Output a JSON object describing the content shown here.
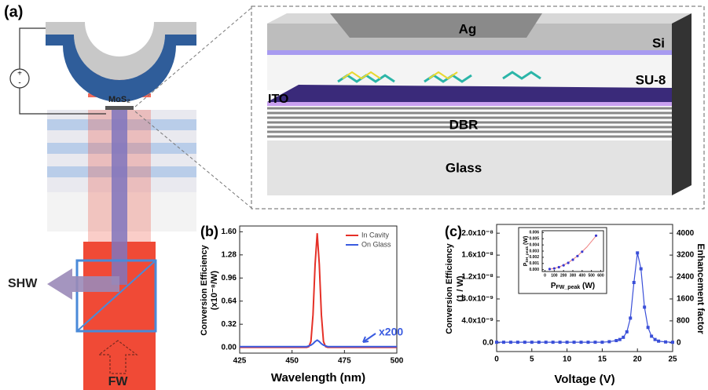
{
  "panel_a": {
    "label": "(a)",
    "mos2": "MoS₂",
    "plus": "+",
    "minus": "-",
    "shw": "SHW",
    "fw": "FW"
  },
  "device": {
    "ag": "Ag",
    "si": "Si",
    "su8": "SU-8",
    "ito": "ITO",
    "dbr": "DBR",
    "glass": "Glass"
  },
  "chart_data": [
    {
      "type": "line",
      "panel": "(b)",
      "xlabel": "Wavelength (nm)",
      "ylabel": [
        "Conversion Efficiency",
        "(x10⁻⁸/W)"
      ],
      "annotation": "x200",
      "x": [
        425,
        440,
        455,
        457,
        458,
        459,
        460,
        461,
        462,
        463,
        464,
        465,
        466,
        467,
        470,
        485,
        500
      ],
      "series": [
        {
          "name": "In Cavity",
          "color": "#e53027",
          "values": [
            0,
            0,
            0,
            0,
            0.01,
            0.08,
            0.45,
            1.15,
            1.58,
            1.15,
            0.45,
            0.08,
            0.01,
            0,
            0,
            0,
            0
          ]
        },
        {
          "name": "On Glass",
          "color": "#3a5be0",
          "values": [
            0.01,
            0.01,
            0.01,
            0.01,
            0.02,
            0.03,
            0.05,
            0.08,
            0.1,
            0.08,
            0.05,
            0.03,
            0.02,
            0.01,
            0.01,
            0.01,
            0.01
          ]
        }
      ],
      "xlim": [
        425,
        500
      ],
      "xticks": [
        425,
        450,
        475,
        500
      ],
      "ylim": [
        -0.08,
        1.68
      ],
      "yticks": [
        {
          "value": 0,
          "label": "0.00"
        },
        0.32,
        0.64,
        0.96,
        1.28,
        {
          "value": 1.6,
          "label": "1.60"
        }
      ],
      "legend": "upper right"
    },
    {
      "type": "line",
      "markers": true,
      "panel": "(c)",
      "xlabel": "Voltage (V)",
      "ylabel": [
        "Conversion Efficiency",
        "(1 / W)"
      ],
      "y2label": "Enhancement  factor",
      "x": [
        0,
        1,
        2,
        3,
        4,
        5,
        6,
        7,
        8,
        9,
        10,
        11,
        12,
        13,
        14,
        15,
        16,
        17,
        17.5,
        18,
        18.5,
        19,
        19.5,
        20,
        20.5,
        21,
        21.5,
        22,
        22.5,
        23,
        24,
        25
      ],
      "series": [
        {
          "color": "#3a4fd8",
          "values": [
            1e-10,
            1e-10,
            1e-10,
            1e-10,
            1e-10,
            1e-10,
            1e-10,
            1e-10,
            1e-10,
            1e-10,
            1e-10,
            1e-10,
            1e-10,
            1e-10,
            1e-10,
            1e-10,
            2e-10,
            4e-10,
            6e-10,
            1e-09,
            2e-09,
            4.5e-09,
            1.1e-08,
            1.64e-08,
            1.35e-08,
            6.5e-09,
            2.8e-09,
            1.2e-09,
            6e-10,
            3e-10,
            1.5e-10,
            1e-10
          ]
        }
      ],
      "xlim": [
        0,
        25
      ],
      "xticks": [
        0,
        5,
        10,
        15,
        20,
        25
      ],
      "ylim": [
        -1.6e-09,
        2.16e-08
      ],
      "yticks": [
        {
          "value": 0,
          "label": "0.0"
        },
        {
          "value": 4e-09,
          "label": "4.0x10⁻⁹"
        },
        {
          "value": 8e-09,
          "label": "8.0x10⁻⁹"
        },
        {
          "value": 1.2e-08,
          "label": "1.2x10⁻⁸"
        },
        {
          "value": 1.6e-08,
          "label": "1.6x10⁻⁸"
        },
        {
          "value": 2e-08,
          "label": "2.0x10⁻⁸"
        }
      ],
      "y2lim": [
        -320,
        4320
      ],
      "y2ticks": [
        0,
        800,
        1600,
        2400,
        3200,
        4000
      ],
      "inset": {
        "type": "scatter",
        "xlabel": {
          "main": "P",
          "sub": "FW_peak",
          "unit": " (W)"
        },
        "ylabel": {
          "main": "P",
          "sub": "SH_peak",
          "unit": " (W)"
        },
        "x": [
          50,
          100,
          150,
          200,
          250,
          300,
          350,
          400,
          550
        ],
        "series": [
          {
            "color": "#3a3ad0",
            "values": [
              0.0001,
              0.0002,
              0.0004,
              0.0007,
              0.0011,
              0.0016,
              0.0022,
              0.0029,
              0.0055
            ]
          }
        ],
        "fit": {
          "color": "#f08080",
          "x": [
            50,
            150,
            250,
            350,
            450,
            560
          ],
          "values": [
            4.5e-05,
            0.000405,
            0.001125,
            0.002205,
            0.003645,
            0.005645
          ]
        },
        "xlim": [
          -30,
          630
        ],
        "xticks": [
          0,
          100,
          200,
          300,
          400,
          500,
          600
        ],
        "ylim": [
          -0.0003,
          0.0063
        ],
        "yticks": [
          {
            "value": 0,
            "label": "0.000"
          },
          {
            "value": 0.001,
            "label": "0.001"
          },
          {
            "value": 0.002,
            "label": "0.002"
          },
          {
            "value": 0.003,
            "label": "0.003"
          },
          {
            "value": 0.004,
            "label": "0.004"
          },
          {
            "value": 0.005,
            "label": "0.005"
          },
          {
            "value": 0.006,
            "label": "0.006"
          }
        ]
      }
    }
  ]
}
